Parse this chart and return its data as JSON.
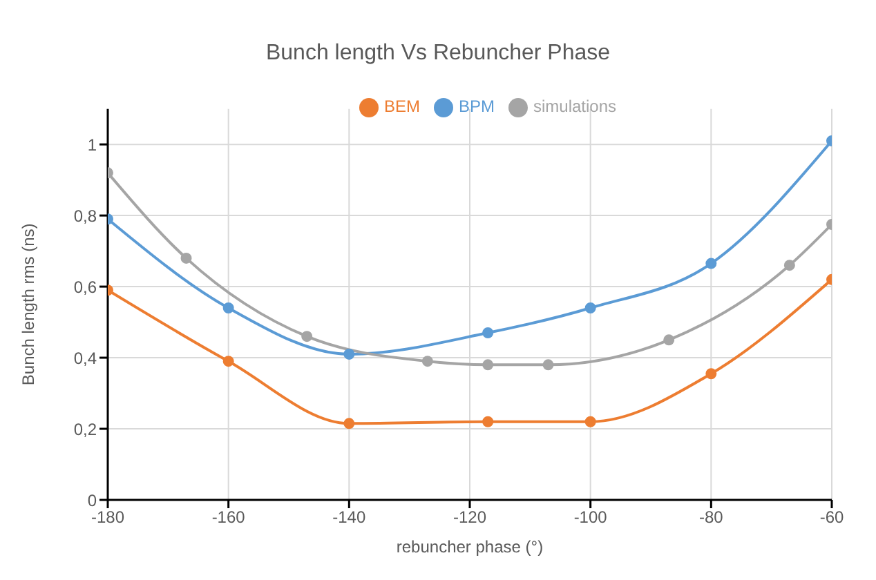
{
  "chart_data": {
    "type": "line",
    "title": "Bunch length Vs Rebuncher Phase",
    "xlabel": "rebuncher phase (°)",
    "ylabel": "Bunch length rms (ns)",
    "xlim": [
      -180,
      -60
    ],
    "xticks": [
      -180,
      -160,
      -140,
      -120,
      -100,
      -80,
      -60
    ],
    "ylim": [
      0,
      1.1
    ],
    "yticks": [
      0,
      {
        "value": 0.2,
        "label": "0,2"
      },
      {
        "value": 0.4,
        "label": "0,4"
      },
      {
        "value": 0.6,
        "label": "0,6"
      },
      {
        "value": 0.8,
        "label": "0,8"
      },
      1
    ],
    "grid": true,
    "legend": "top",
    "marker": "circle",
    "series": [
      {
        "name": "BPM",
        "color": "#5b9bd5",
        "x": [
          -180,
          -160,
          -140,
          -117,
          -100,
          -80,
          -60
        ],
        "values": [
          0.79,
          0.54,
          0.41,
          0.47,
          0.54,
          0.665,
          1.01
        ]
      },
      {
        "name": "BEM",
        "color": "#ed7d31",
        "x": [
          -180,
          -160,
          -140,
          -117,
          -100,
          -80,
          -60
        ],
        "values": [
          0.59,
          0.39,
          0.215,
          0.22,
          0.22,
          0.355,
          0.62
        ]
      },
      {
        "name": "simulations",
        "color": "#a5a5a5",
        "x": [
          -180,
          -167,
          -147,
          -127,
          -117,
          -107,
          -87,
          -67,
          -60
        ],
        "values": [
          0.92,
          0.68,
          0.46,
          0.39,
          0.38,
          0.38,
          0.45,
          0.66,
          0.775
        ]
      }
    ]
  }
}
